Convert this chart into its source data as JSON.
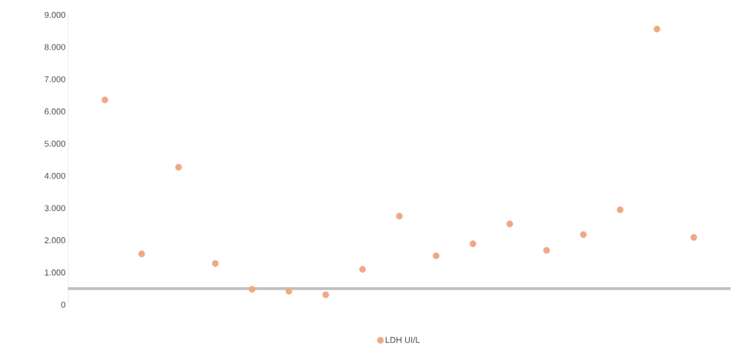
{
  "chart_data": {
    "type": "scatter",
    "categories": [
      null,
      null,
      null,
      null,
      null,
      null,
      null,
      null,
      null,
      null,
      null,
      null,
      null,
      null,
      null,
      null,
      null
    ],
    "series": [
      {
        "name": "LDH UI/L",
        "color": "#f0a884",
        "values": [
          6360,
          1580,
          4270,
          1280,
          480,
          420,
          310,
          1100,
          2750,
          1520,
          1890,
          2510,
          1690,
          2180,
          2950,
          8560,
          2090
        ]
      }
    ],
    "ylim": [
      0,
      9000
    ],
    "yticks": [
      {
        "value": 0,
        "label": "0"
      },
      {
        "value": 1000,
        "label": "1.000"
      },
      {
        "value": 2000,
        "label": "2.000"
      },
      {
        "value": 3000,
        "label": "3.000"
      },
      {
        "value": 4000,
        "label": "4.000"
      },
      {
        "value": 5000,
        "label": "5.000"
      },
      {
        "value": 6000,
        "label": "6.000"
      },
      {
        "value": 7000,
        "label": "7.000"
      },
      {
        "value": 8000,
        "label": "8.000"
      },
      {
        "value": 9000,
        "label": "9.000"
      }
    ],
    "ref_lines": [
      {
        "axis": "y",
        "value": 500,
        "color": "#bfbfbf"
      }
    ],
    "grid": false,
    "legend": "bottom"
  }
}
